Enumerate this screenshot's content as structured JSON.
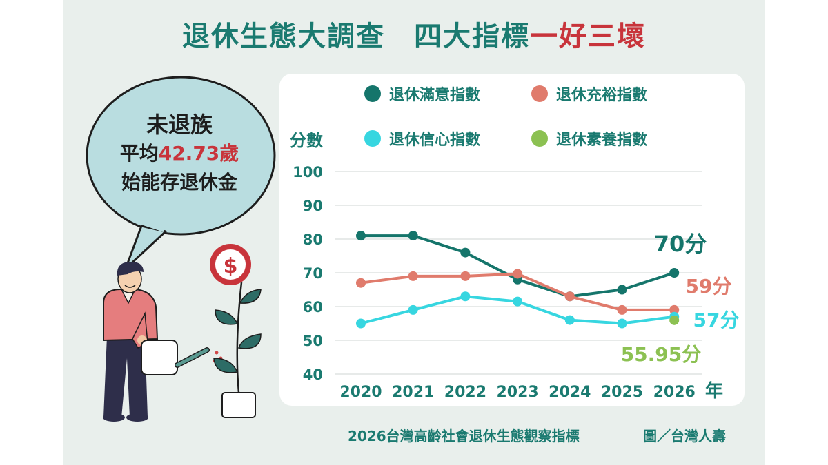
{
  "title": {
    "main": "退休生態大調查　四大指標",
    "highlight": "一好三壞"
  },
  "bubble": {
    "line1": "未退族",
    "line2_prefix": "平均",
    "line2_value": "42.73歲",
    "line3": "始能存退休金"
  },
  "source": "2026台灣高齡社會退休生態觀察指標",
  "credit": "圖／台灣人壽",
  "icons": [
    "dollar-icon",
    "watering-can-icon",
    "person-illustration",
    "plant-illustration"
  ],
  "colors": {
    "title": "#1a7a70",
    "highlight": "#c8343b",
    "background": "#e9efec"
  },
  "chart_data": {
    "type": "line",
    "ylabel": "分數",
    "xlabel": "年",
    "ylim": [
      40,
      100
    ],
    "yticks": [
      40,
      50,
      60,
      70,
      80,
      90,
      100
    ],
    "x": [
      "2020",
      "2021",
      "2022",
      "2023",
      "2024",
      "2025",
      "2026"
    ],
    "grid": true,
    "legend": "top",
    "series": [
      {
        "name": "退休滿意指數",
        "color": "#15756b",
        "values": [
          81,
          81,
          76,
          68,
          63,
          65,
          70
        ],
        "end_label": "70分"
      },
      {
        "name": "退休充裕指數",
        "color": "#e07b6c",
        "values": [
          67,
          69,
          69,
          69.7,
          63,
          59,
          59
        ],
        "end_label": "59分"
      },
      {
        "name": "退休信心指數",
        "color": "#37d6e0",
        "values": [
          55,
          59,
          63,
          61.5,
          56,
          55,
          57
        ],
        "end_label": "57分"
      },
      {
        "name": "退休素養指數",
        "color": "#8cc152",
        "values": [
          null,
          null,
          null,
          null,
          null,
          null,
          55.95
        ],
        "end_label": "55.95分"
      }
    ]
  }
}
